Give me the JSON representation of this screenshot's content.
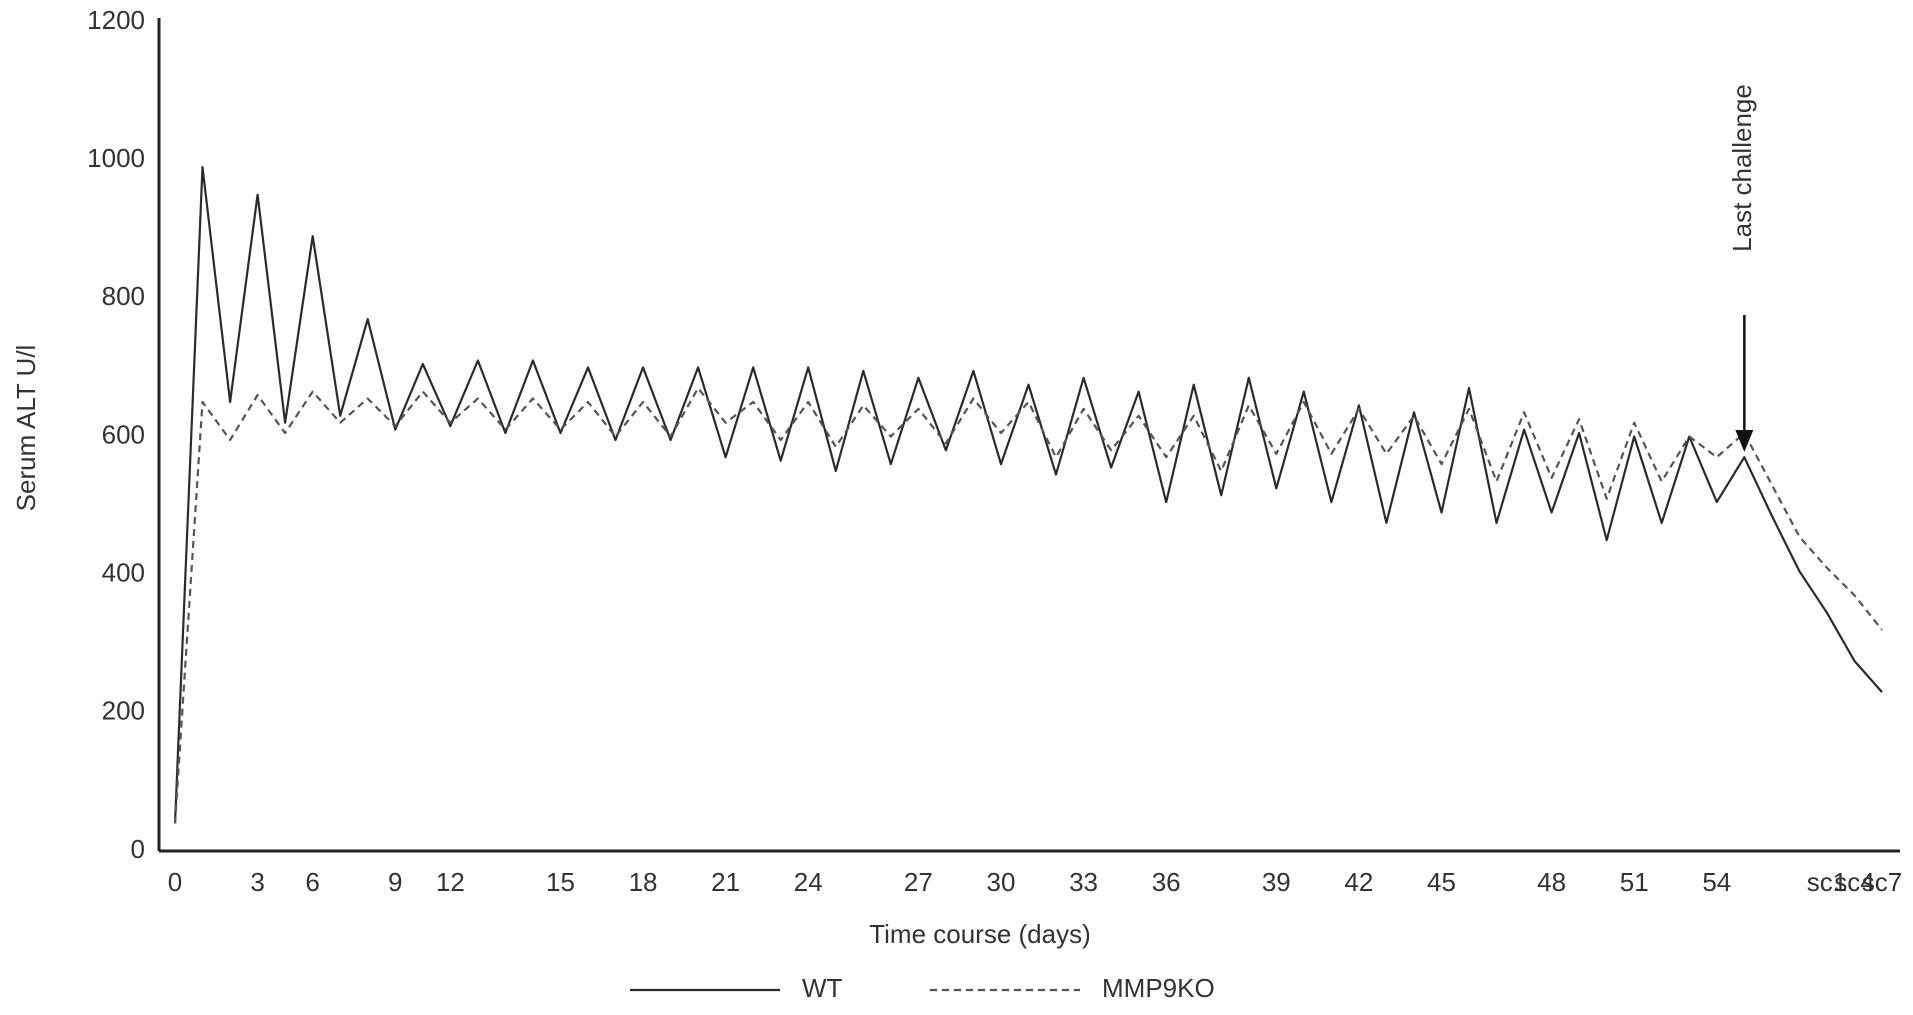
{
  "chart_data": {
    "type": "line",
    "x_label": "Time course (days)",
    "y_label": "Serum ALT U/l",
    "categories": [
      "0",
      null,
      null,
      "3",
      null,
      "6",
      null,
      null,
      "9",
      null,
      "12",
      null,
      null,
      null,
      "15",
      null,
      null,
      "18",
      null,
      null,
      "21",
      null,
      null,
      "24",
      null,
      null,
      null,
      "27",
      null,
      null,
      "30",
      null,
      null,
      "33",
      null,
      null,
      "36",
      null,
      null,
      null,
      "39",
      null,
      null,
      "42",
      null,
      null,
      "45",
      null,
      null,
      null,
      "48",
      null,
      null,
      "51",
      null,
      null,
      "54",
      null,
      null,
      null,
      "sc1",
      "sc4",
      "sc7"
    ],
    "series": [
      {
        "name": "WT",
        "color": "#2b2b2b",
        "style": "solid",
        "values": [
          40,
          990,
          650,
          950,
          620,
          890,
          630,
          770,
          610,
          705,
          615,
          710,
          605,
          710,
          605,
          700,
          595,
          700,
          595,
          700,
          570,
          700,
          565,
          700,
          550,
          695,
          560,
          685,
          580,
          695,
          560,
          675,
          545,
          685,
          555,
          665,
          505,
          675,
          515,
          685,
          525,
          665,
          505,
          645,
          475,
          635,
          490,
          670,
          475,
          610,
          490,
          605,
          450,
          600,
          475,
          600,
          505,
          570,
          485,
          405,
          345,
          275,
          230
        ]
      },
      {
        "name": "MMP9KO",
        "color": "#555555",
        "style": "dashed",
        "values": [
          40,
          650,
          595,
          660,
          605,
          665,
          620,
          655,
          615,
          665,
          620,
          655,
          610,
          655,
          610,
          650,
          600,
          650,
          600,
          670,
          620,
          650,
          595,
          650,
          585,
          645,
          600,
          640,
          590,
          655,
          605,
          650,
          570,
          640,
          580,
          630,
          570,
          630,
          550,
          645,
          575,
          650,
          575,
          640,
          575,
          630,
          560,
          640,
          535,
          635,
          540,
          625,
          510,
          620,
          535,
          600,
          570,
          605,
          530,
          455,
          410,
          370,
          320
        ]
      }
    ],
    "ylim": [
      0,
      1200
    ],
    "yticks": [
      0,
      200,
      400,
      600,
      800,
      1000,
      1200
    ],
    "grid": false,
    "legend": "bottom",
    "annotations": [
      {
        "text": "Last challenge"
      }
    ]
  }
}
